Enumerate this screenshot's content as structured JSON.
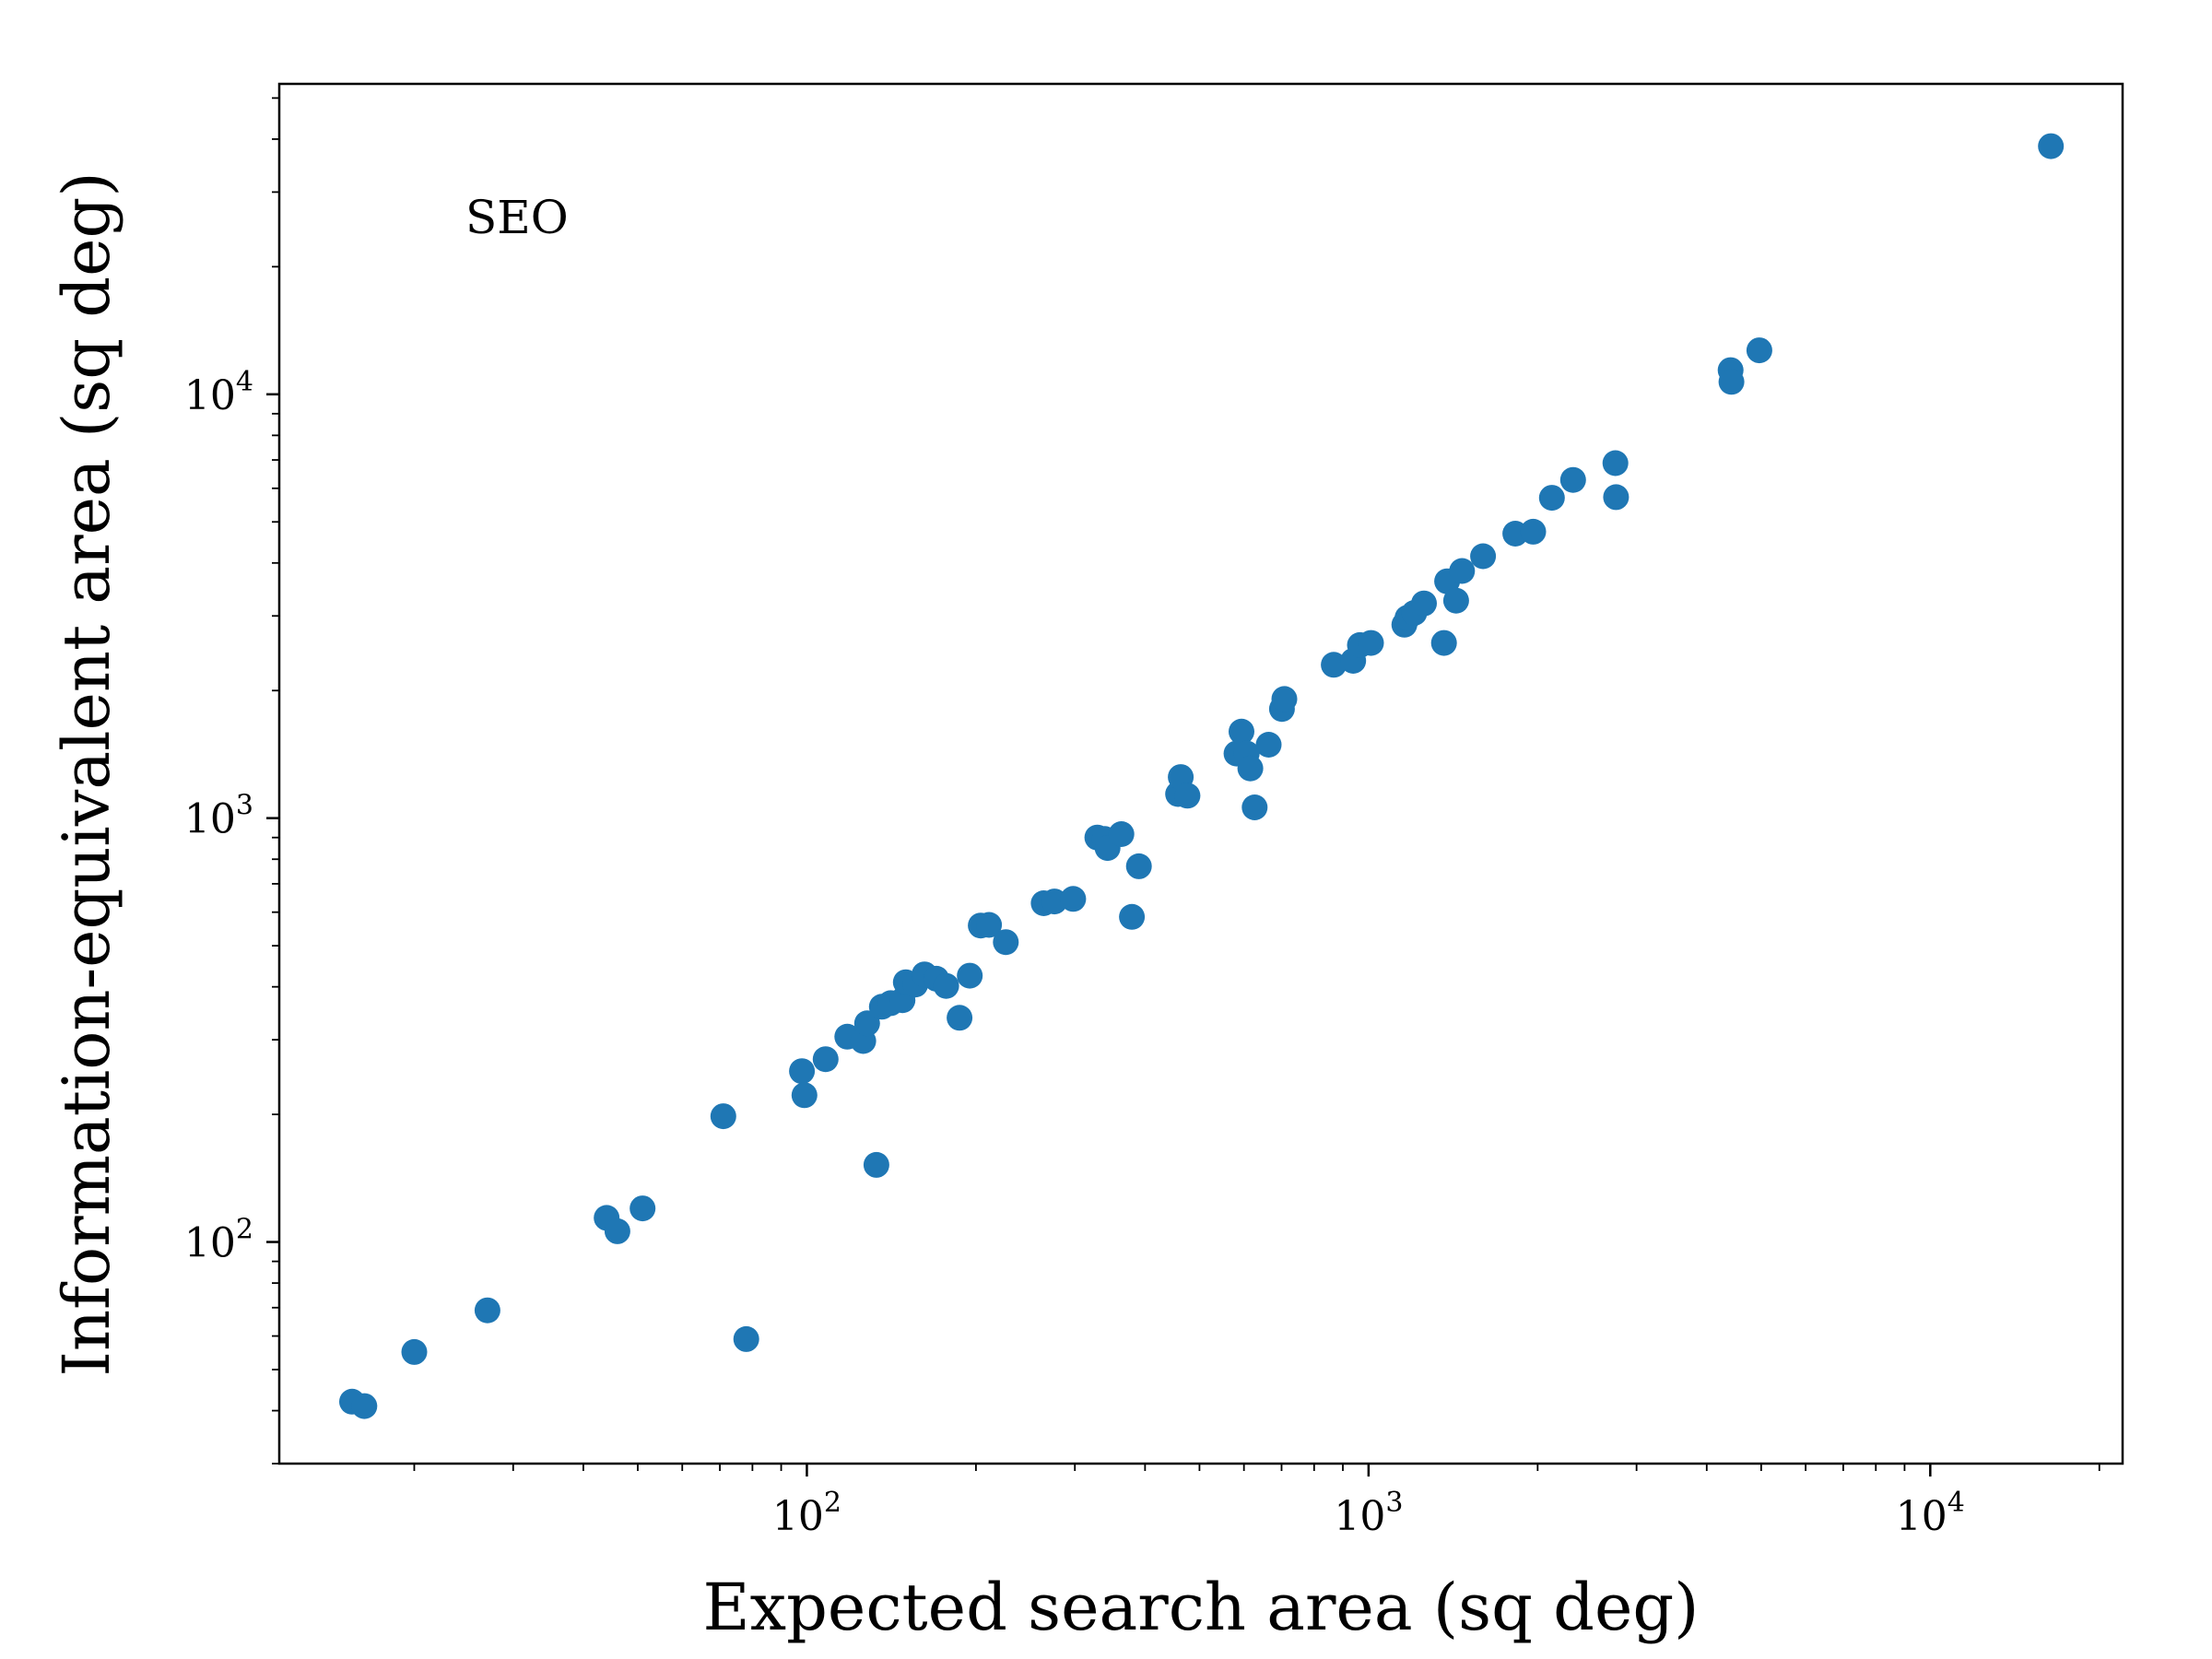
{
  "chart_data": {
    "type": "scatter",
    "title": "",
    "xlabel": "Expected search area (sq deg)",
    "ylabel": "Information-equivalent area (sq deg)",
    "xscale": "log",
    "yscale": "log",
    "xlim": [
      11.5,
      22000
    ],
    "ylim": [
      30,
      54000
    ],
    "xticks": [
      {
        "base": "10",
        "exp": "2",
        "value": 100
      },
      {
        "base": "10",
        "exp": "3",
        "value": 1000
      },
      {
        "base": "10",
        "exp": "4",
        "value": 10000
      }
    ],
    "yticks": [
      {
        "base": "10",
        "exp": "2",
        "value": 100
      },
      {
        "base": "10",
        "exp": "3",
        "value": 1000
      },
      {
        "base": "10",
        "exp": "4",
        "value": 10000
      }
    ],
    "grid": false,
    "annotation": "SEO",
    "marker_color": "#1f77b4",
    "points": [
      [
        15.5,
        42
      ],
      [
        16.3,
        41
      ],
      [
        20,
        55
      ],
      [
        27,
        69
      ],
      [
        44,
        114
      ],
      [
        46,
        106
      ],
      [
        51,
        120
      ],
      [
        71,
        198
      ],
      [
        78,
        59
      ],
      [
        98,
        253
      ],
      [
        99,
        222
      ],
      [
        108,
        270
      ],
      [
        118,
        305
      ],
      [
        126,
        298
      ],
      [
        128,
        328
      ],
      [
        133,
        152
      ],
      [
        136,
        359
      ],
      [
        141,
        366
      ],
      [
        148,
        372
      ],
      [
        150,
        410
      ],
      [
        156,
        405
      ],
      [
        162,
        428
      ],
      [
        170,
        418
      ],
      [
        177,
        402
      ],
      [
        187,
        338
      ],
      [
        195,
        425
      ],
      [
        204,
        558
      ],
      [
        211,
        560
      ],
      [
        226,
        510
      ],
      [
        264,
        630
      ],
      [
        276,
        636
      ],
      [
        298,
        645
      ],
      [
        329,
        900
      ],
      [
        339,
        893
      ],
      [
        343,
        850
      ],
      [
        363,
        917
      ],
      [
        379,
        585
      ],
      [
        390,
        770
      ],
      [
        458,
        1140
      ],
      [
        463,
        1250
      ],
      [
        476,
        1130
      ],
      [
        582,
        1420
      ],
      [
        594,
        1600
      ],
      [
        607,
        1420
      ],
      [
        616,
        1310
      ],
      [
        627,
        1060
      ],
      [
        664,
        1490
      ],
      [
        701,
        1810
      ],
      [
        708,
        1910
      ],
      [
        867,
        2300
      ],
      [
        939,
        2350
      ],
      [
        965,
        2560
      ],
      [
        1010,
        2590
      ],
      [
        1158,
        2860
      ],
      [
        1173,
        2970
      ],
      [
        1206,
        3050
      ],
      [
        1255,
        3210
      ],
      [
        1362,
        2590
      ],
      [
        1380,
        3620
      ],
      [
        1432,
        3260
      ],
      [
        1467,
        3830
      ],
      [
        1599,
        4150
      ],
      [
        1825,
        4690
      ],
      [
        1964,
        4740
      ],
      [
        2120,
        5700
      ],
      [
        2313,
        6280
      ],
      [
        2751,
        6880
      ],
      [
        2758,
        5720
      ],
      [
        4412,
        11400
      ],
      [
        4426,
        10700
      ],
      [
        4964,
        12700
      ],
      [
        16400,
        38500
      ]
    ]
  }
}
